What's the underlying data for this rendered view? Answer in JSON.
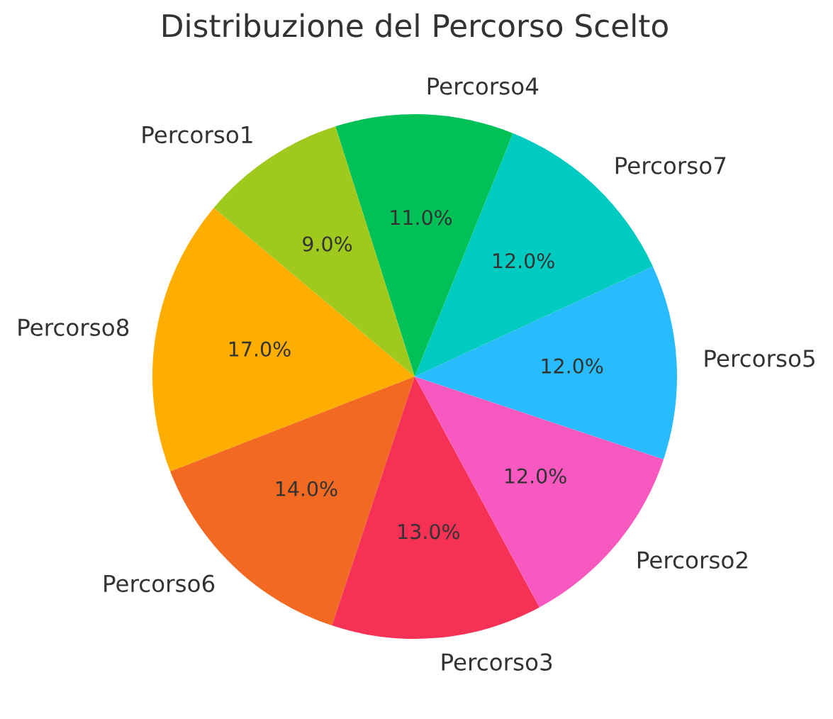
{
  "chart_data": {
    "type": "pie",
    "title": "Distribuzione del Percorso Scelto",
    "categories": [
      "Percorso8",
      "Percorso6",
      "Percorso3",
      "Percorso2",
      "Percorso5",
      "Percorso7",
      "Percorso4",
      "Percorso1"
    ],
    "values": [
      17,
      14,
      13,
      12,
      12,
      12,
      11,
      9
    ],
    "colors": [
      "#ffae00",
      "#f26a22",
      "#f53255",
      "#f859c1",
      "#29bcfd",
      "#00cbc0",
      "#00c158",
      "#9fca1d"
    ],
    "value_labels": [
      "17.0%",
      "14.0%",
      "13.0%",
      "12.0%",
      "12.0%",
      "12.0%",
      "11.0%",
      "9.0%"
    ]
  }
}
